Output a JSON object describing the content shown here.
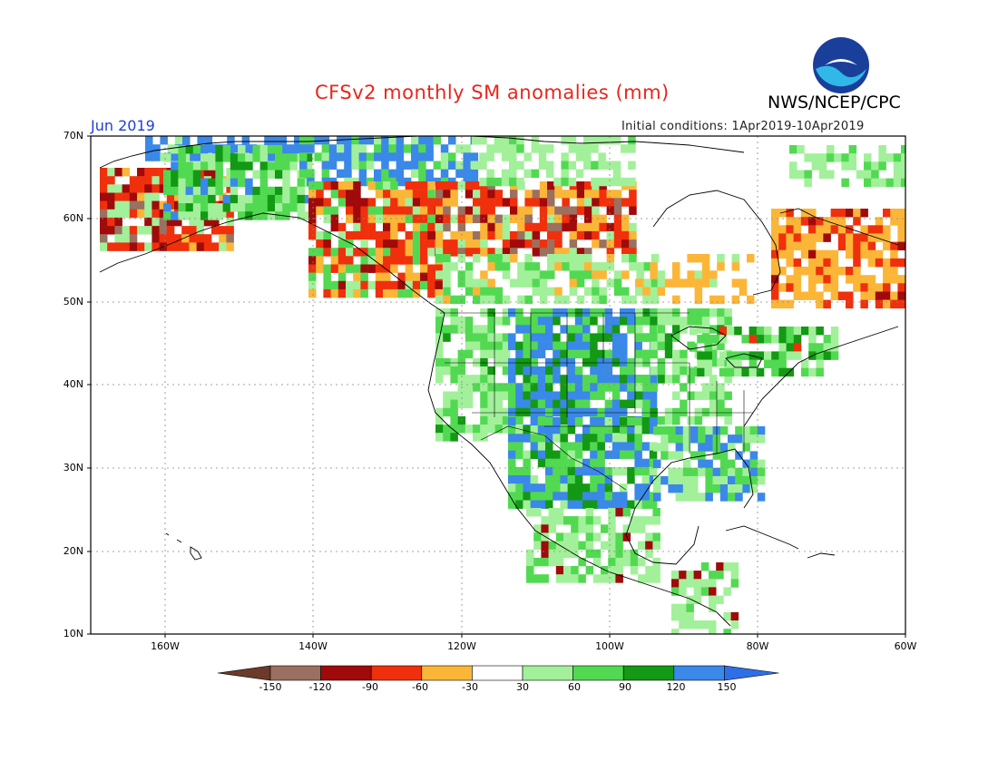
{
  "header": {
    "title": "CFSv2 monthly SM anomalies (mm)",
    "agency": "NWS/NCEP/CPC",
    "logo_text": "NOAA",
    "month": "Jun 2019",
    "initial_conditions": "Initial conditions: 1Apr2019-10Apr2019"
  },
  "map": {
    "lat_labels": [
      "70N",
      "60N",
      "50N",
      "40N",
      "30N",
      "20N",
      "10N"
    ],
    "lon_labels": [
      "160W",
      "140W",
      "120W",
      "100W",
      "80W",
      "60W"
    ],
    "extent": {
      "lon": [
        -170,
        -60
      ],
      "lat": [
        10,
        70
      ]
    }
  },
  "colorbar": {
    "tick_labels": [
      "-150",
      "-120",
      "-90",
      "-60",
      "-30",
      "30",
      "60",
      "90",
      "120",
      "150"
    ],
    "colors": [
      "#6b3a2a",
      "#9a7060",
      "#a00a0a",
      "#ee2a12",
      "#ff5008",
      "#fbb638",
      "#ffffff",
      "#a2f09a",
      "#52d952",
      "#139913",
      "#3a88e8",
      "#2e6fe8"
    ]
  },
  "colors": {
    "title": "#e8261c",
    "month": "#1e3fd8"
  }
}
